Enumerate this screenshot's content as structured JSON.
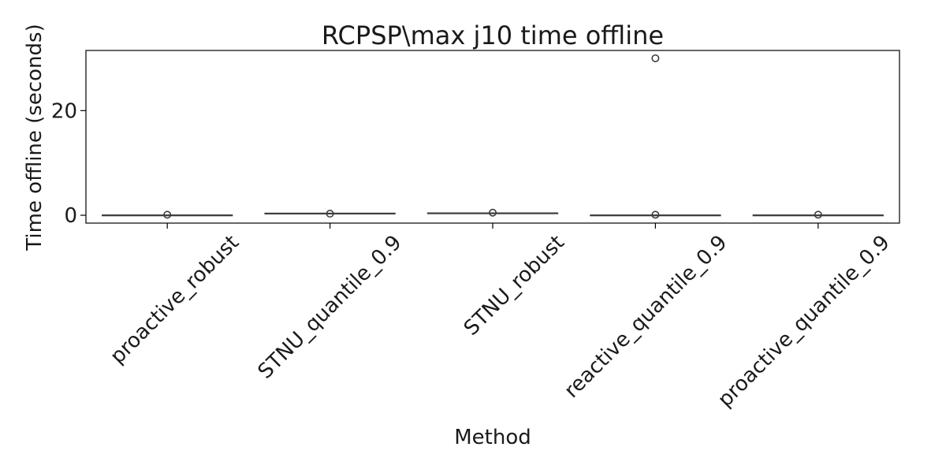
{
  "chart_data": {
    "type": "box",
    "title": "RCPSP\\max j10 time offline",
    "xlabel": "Method",
    "ylabel": "Time offline (seconds)",
    "ylim": [
      -1.5,
      31.5
    ],
    "yticks": [
      0,
      20
    ],
    "ytick_labels": [
      "0",
      "20"
    ],
    "categories": [
      "proactive_robust",
      "STNU_quantile_0.9",
      "STNU_robust",
      "reactive_quantile_0.9",
      "proactive_quantile_0.9"
    ],
    "boxes": [
      {
        "category": "proactive_robust",
        "q1": 0.02,
        "median": 0.03,
        "q3": 0.05,
        "whisker_low": 0.01,
        "whisker_high": 0.08,
        "outliers": [
          0.1
        ]
      },
      {
        "category": "STNU_quantile_0.9",
        "q1": 0.3,
        "median": 0.35,
        "q3": 0.4,
        "whisker_low": 0.25,
        "whisker_high": 0.45,
        "outliers": [
          0.3
        ]
      },
      {
        "category": "STNU_robust",
        "q1": 0.35,
        "median": 0.4,
        "q3": 0.45,
        "whisker_low": 0.3,
        "whisker_high": 0.5,
        "outliers": [
          0.5
        ]
      },
      {
        "category": "reactive_quantile_0.9",
        "q1": 0.0,
        "median": 0.02,
        "q3": 0.05,
        "whisker_low": 0.0,
        "whisker_high": 0.1,
        "outliers": [
          0.1,
          30.0
        ]
      },
      {
        "category": "proactive_quantile_0.9",
        "q1": 0.02,
        "median": 0.03,
        "q3": 0.05,
        "whisker_low": 0.01,
        "whisker_high": 0.08,
        "outliers": [
          0.1
        ]
      }
    ],
    "grid": false,
    "colors": {
      "box_edge": "#3d3d3d",
      "axis": "#000000"
    }
  }
}
